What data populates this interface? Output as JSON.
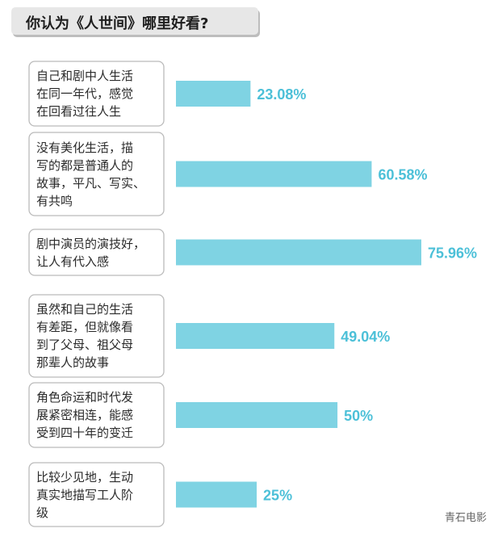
{
  "title": "你认为《人世间》哪里好看?",
  "watermark": "青石电影",
  "colors": {
    "bar": "#7fd3e3",
    "value_text": "#4cc0d8",
    "box_border": "#bbbbbb"
  },
  "chart_data": {
    "type": "bar",
    "orientation": "horizontal",
    "categories": [
      "自己和剧中人生活\n在同一年代，感觉\n在回看过往人生",
      "没有美化生活，描\n写的都是普通人的\n故事，平凡、写实、\n有共鸣",
      "剧中演员的演技好，\n让人有代入感",
      "虽然和自己的生活\n有差距，但就像看\n到了父母、祖父母\n那辈人的故事",
      "角色命运和时代发\n展紧密相连，能感\n受到四十年的变迁",
      "比较少见地，生动\n真实地描写工人阶\n级"
    ],
    "values": [
      23.08,
      60.58,
      75.96,
      49.04,
      50,
      25
    ],
    "value_labels": [
      "23.08%",
      "60.58%",
      "75.96%",
      "49.04%",
      "50%",
      "25%"
    ],
    "xlim": [
      0,
      100
    ],
    "grid": false
  }
}
